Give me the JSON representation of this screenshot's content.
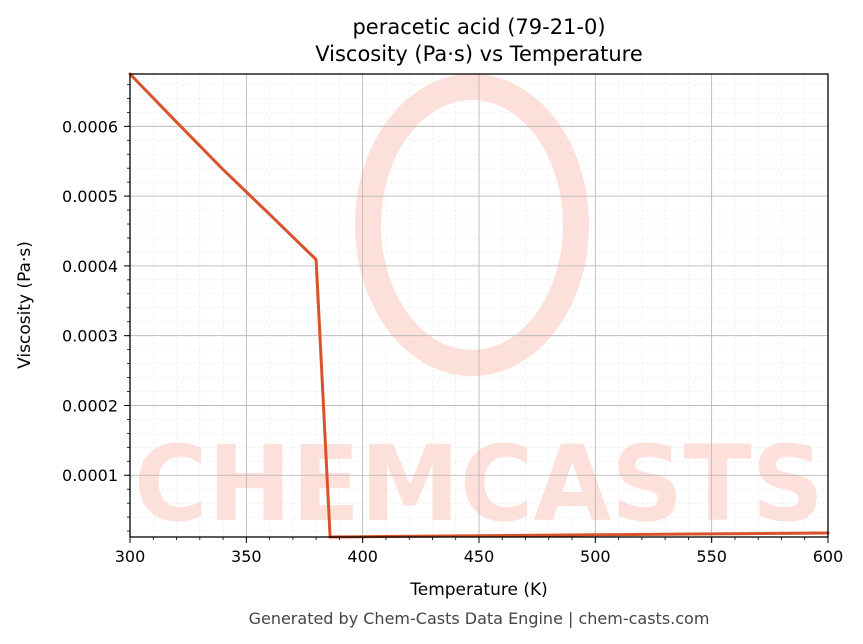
{
  "chart_data": {
    "type": "line",
    "title": "peracetic acid (79-21-0)",
    "subtitle": "Viscosity (Pa·s) vs Temperature",
    "xlabel": "Temperature (K)",
    "ylabel": "Viscosity (Pa·s)",
    "xlim": [
      300,
      600
    ],
    "ylim": [
      1.15e-05,
      0.000675
    ],
    "x_ticks": [
      300,
      350,
      400,
      450,
      500,
      550,
      600
    ],
    "y_ticks": [
      0.0001,
      0.0002,
      0.0003,
      0.0004,
      0.0005,
      0.0006
    ],
    "y_tick_labels": [
      "0.0001",
      "0.0002",
      "0.0003",
      "0.0004",
      "0.0005",
      "0.0006"
    ],
    "grid": true,
    "series": [
      {
        "color": "#d9532a",
        "x": [
          300,
          320,
          340,
          360,
          380,
          386,
          400,
          450,
          500,
          550,
          600
        ],
        "y": [
          0.000675,
          0.000606,
          0.000538,
          0.000474,
          0.000409,
          1.15e-05,
          1.2e-05,
          1.33e-05,
          1.47e-05,
          1.6e-05,
          1.72e-05
        ]
      }
    ]
  },
  "watermark": {
    "text": "CHEMCASTS",
    "color": "#fde0da"
  },
  "footer": "Generated by Chem-Casts Data Engine | chem-casts.com"
}
